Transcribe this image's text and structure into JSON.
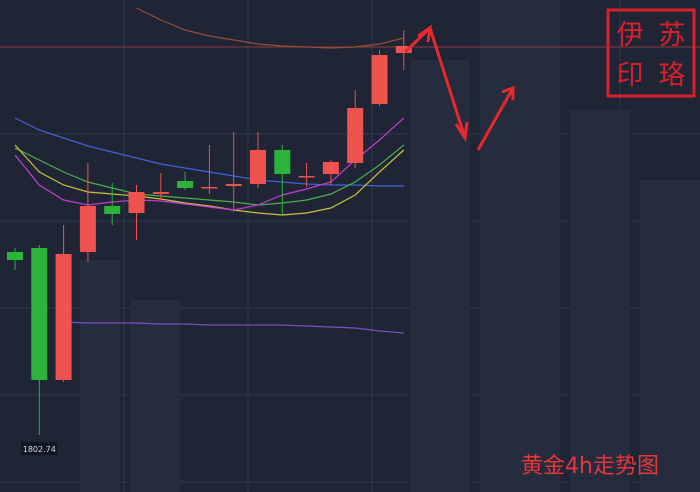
{
  "chart_data": {
    "type": "candlestick",
    "title": "黄金4h走势图",
    "stamp": [
      "伊",
      "苏",
      "印",
      "珞"
    ],
    "ylim": [
      1797.04,
      1846.24
    ],
    "up_color": "#ef5350",
    "down_color": "#2bb33a",
    "open": [
      1821.04,
      1821.44,
      1808.24,
      1821.04,
      1825.64,
      1824.94,
      1826.84,
      1828.14,
      1827.44,
      1827.64,
      1827.84,
      1831.24,
      1828.54,
      1828.84,
      1829.94,
      1835.84,
      1840.94
    ],
    "high": [
      1821.44,
      1821.74,
      1823.74,
      1829.94,
      1827.94,
      1827.74,
      1828.94,
      1829.04,
      1831.74,
      1833.04,
      1833.04,
      1831.74,
      1829.94,
      1830.24,
      1837.24,
      1841.24,
      1843.24
    ],
    "low": [
      1819.24,
      1802.74,
      1808.04,
      1820.04,
      1823.74,
      1822.24,
      1826.24,
      1827.24,
      1826.84,
      1825.04,
      1827.44,
      1824.74,
      1827.54,
      1827.74,
      1829.44,
      1835.64,
      1839.24
    ],
    "close": [
      1820.24,
      1808.24,
      1820.84,
      1825.64,
      1824.84,
      1827.04,
      1827.04,
      1827.44,
      1827.54,
      1827.84,
      1831.24,
      1828.84,
      1828.64,
      1830.04,
      1835.44,
      1840.74,
      1841.64
    ],
    "price_line": 1841.54,
    "series": [
      {
        "color": "#3f63d8",
        "values": [
          1834.44,
          1833.24,
          1832.44,
          1831.64,
          1831.04,
          1830.44,
          1829.84,
          1829.44,
          1829.04,
          1828.64,
          1828.24,
          1828.04,
          1827.84,
          1827.74,
          1827.74,
          1827.64,
          1827.64
        ]
      },
      {
        "color": "#4cae4f",
        "values": [
          1831.44,
          1830.24,
          1829.04,
          1828.04,
          1827.44,
          1826.84,
          1826.64,
          1826.44,
          1826.24,
          1826.04,
          1825.74,
          1825.94,
          1826.24,
          1826.84,
          1828.04,
          1829.74,
          1831.74
        ]
      },
      {
        "color": "#c9c33a",
        "values": [
          1831.74,
          1829.04,
          1827.74,
          1827.04,
          1826.84,
          1826.64,
          1826.34,
          1825.94,
          1825.64,
          1825.24,
          1824.94,
          1824.74,
          1824.94,
          1825.44,
          1826.74,
          1829.04,
          1831.24
        ]
      },
      {
        "color": "#c23bd4",
        "values": [
          1830.74,
          1827.74,
          1826.24,
          1825.74,
          1826.04,
          1826.24,
          1826.14,
          1825.84,
          1825.54,
          1825.24,
          1825.74,
          1826.74,
          1827.34,
          1828.04,
          1830.24,
          1832.24,
          1834.44
        ]
      },
      {
        "color": "#7a4fc4",
        "values": [
          null,
          null,
          1814.04,
          1813.94,
          1813.94,
          1813.94,
          1813.84,
          1813.84,
          1813.74,
          1813.74,
          1813.74,
          1813.74,
          1813.64,
          1813.54,
          1813.44,
          1813.14,
          1812.94
        ]
      },
      {
        "color": "#9c4a3c",
        "values": [
          null,
          null,
          null,
          null,
          null,
          1845.44,
          1844.24,
          1843.24,
          1842.64,
          1842.24,
          1841.84,
          1841.64,
          1841.54,
          1841.44,
          1841.54,
          1841.84,
          1842.44
        ]
      }
    ]
  }
}
